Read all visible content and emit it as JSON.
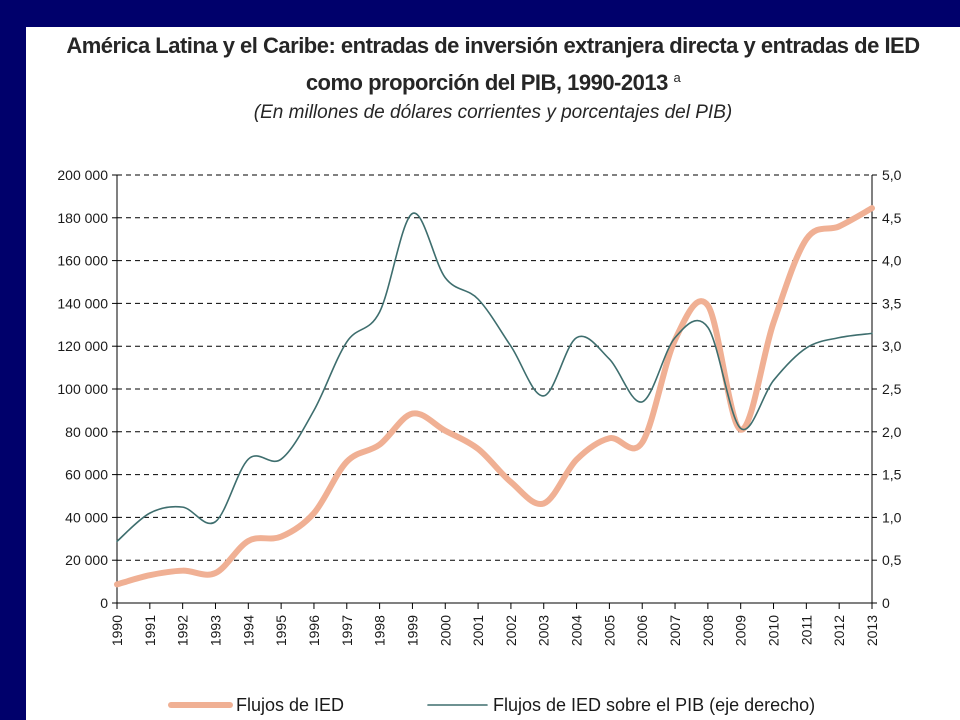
{
  "page": {
    "title_line1": "América Latina y el Caribe: entradas de inversión extranjera directa y entradas de IED",
    "title_line2": "como proporción del PIB, 1990-2013",
    "title_sup": "a",
    "subtitle": "(En millones de dólares corrientes y porcentajes del PIB)",
    "colors": {
      "frame": "#00006b",
      "ied": "#f0b094",
      "pib": "#3e6e6e"
    }
  },
  "chart_data": {
    "type": "line",
    "categories": [
      "1990",
      "1991",
      "1992",
      "1993",
      "1994",
      "1995",
      "1996",
      "1997",
      "1998",
      "1999",
      "2000",
      "2001",
      "2002",
      "2003",
      "2004",
      "2005",
      "2006",
      "2007",
      "2008",
      "2009",
      "2010",
      "2011",
      "2012",
      "2013"
    ],
    "series": [
      {
        "name": "Flujos de IED",
        "axis": "left",
        "color": "#f0b094",
        "values": [
          8700,
          13000,
          15100,
          14000,
          29000,
          31000,
          42000,
          66000,
          74000,
          88500,
          80500,
          72000,
          56500,
          46500,
          67000,
          77000,
          75000,
          123000,
          139000,
          81000,
          131000,
          170000,
          176000,
          184500
        ]
      },
      {
        "name": "Flujos de IED sobre el PIB (eje derecho)",
        "axis": "right",
        "color": "#3e6e6e",
        "values": [
          0.72,
          1.05,
          1.12,
          0.95,
          1.68,
          1.68,
          2.25,
          3.05,
          3.4,
          4.55,
          3.8,
          3.55,
          3.0,
          2.42,
          3.1,
          2.85,
          2.35,
          3.1,
          3.22,
          2.04,
          2.6,
          2.98,
          3.1,
          3.15
        ]
      }
    ],
    "y_left": {
      "range": [
        0,
        200000
      ],
      "ticks": [
        "0",
        "20 000",
        "40 000",
        "60 000",
        "80 000",
        "100 000",
        "120 000",
        "140 000",
        "160 000",
        "180 000",
        "200 000"
      ]
    },
    "y_right": {
      "range": [
        0,
        5
      ],
      "ticks": [
        "0",
        "0,5",
        "1,0",
        "1,5",
        "2,0",
        "2,5",
        "3,0",
        "3,5",
        "4,0",
        "4,5",
        "5,0"
      ]
    },
    "grid": "dashed horizontal",
    "legend": "bottom"
  }
}
